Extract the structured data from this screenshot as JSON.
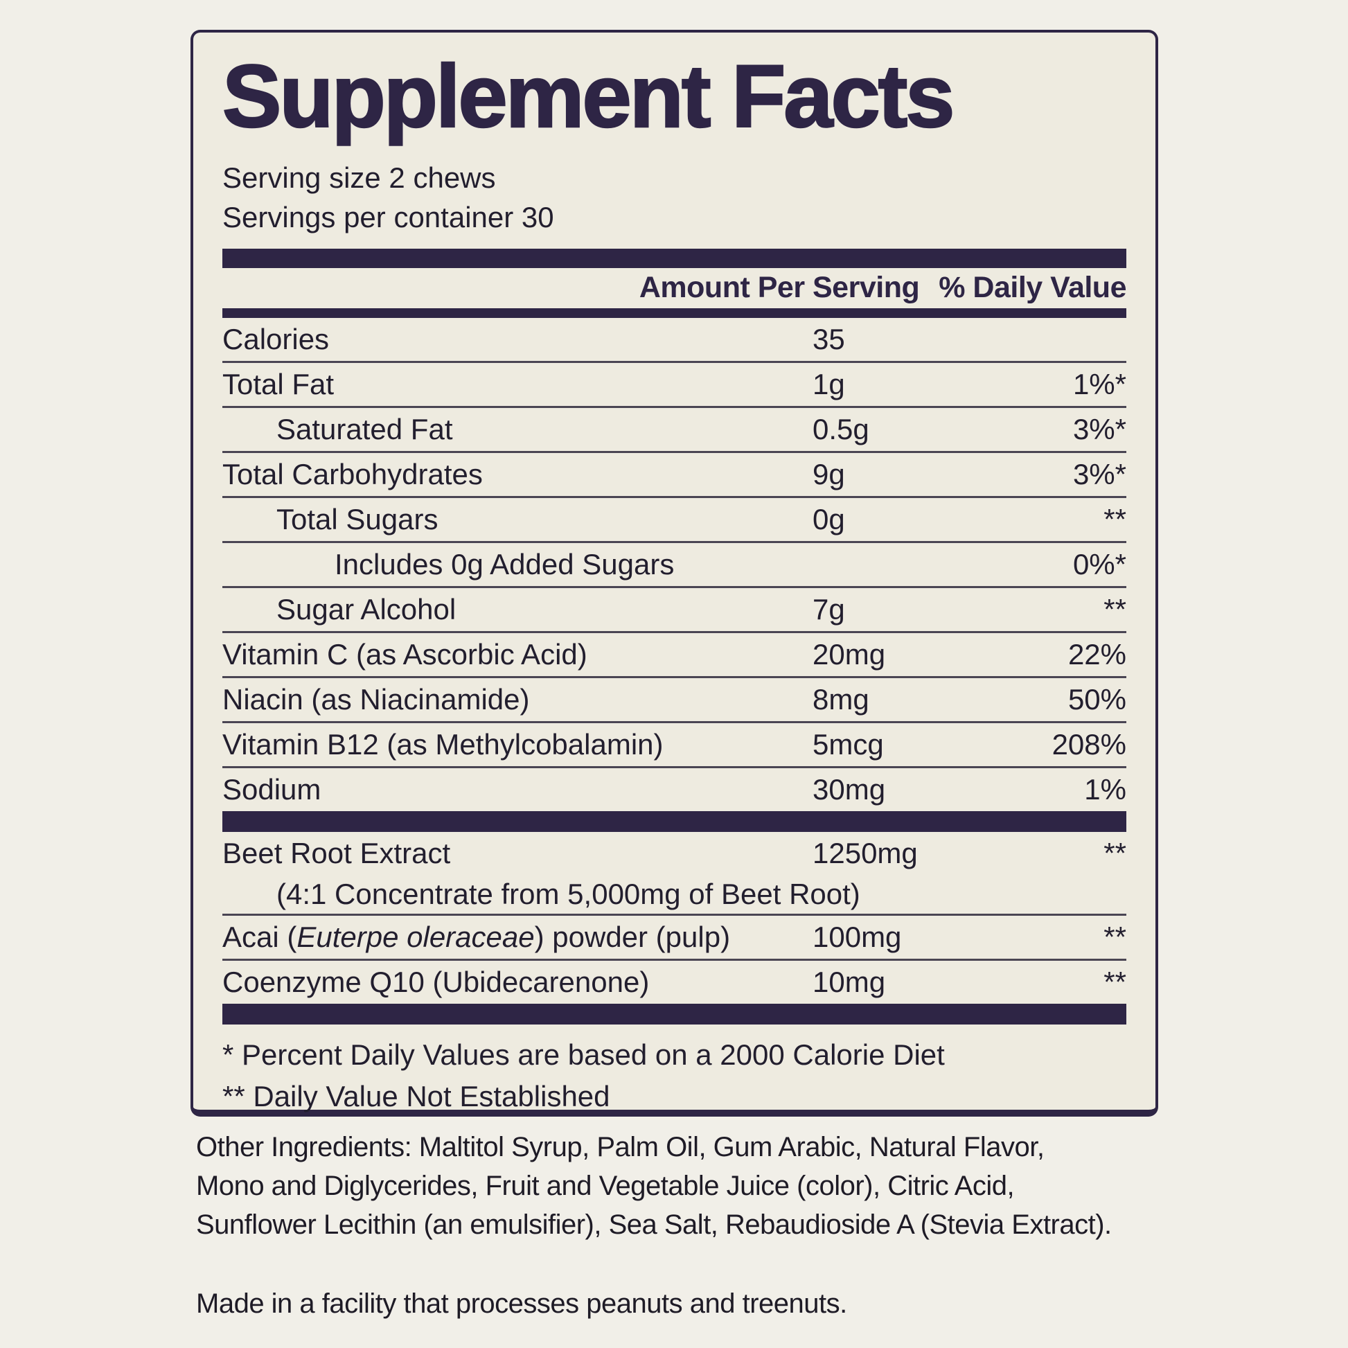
{
  "panel": {
    "title": "Supplement Facts",
    "serving_size": "Serving size 2 chews",
    "servings_per_container": "Servings per container 30",
    "columns": {
      "amount": "Amount Per Serving",
      "daily_value": "% Daily Value"
    },
    "nutrients": [
      {
        "name": "Calories",
        "amount": "35",
        "daily_value": "",
        "indent": 0
      },
      {
        "name": "Total Fat",
        "amount": "1g",
        "daily_value": "1%*",
        "indent": 0
      },
      {
        "name": "Saturated Fat",
        "amount": "0.5g",
        "daily_value": "3%*",
        "indent": 1
      },
      {
        "name": "Total Carbohydrates",
        "amount": "9g",
        "daily_value": "3%*",
        "indent": 0
      },
      {
        "name": "Total Sugars",
        "amount": "0g",
        "daily_value": "**",
        "indent": 1
      },
      {
        "name": "Includes 0g Added Sugars",
        "amount": "",
        "daily_value": "0%*",
        "indent": 2
      },
      {
        "name": "Sugar Alcohol",
        "amount": "7g",
        "daily_value": "**",
        "indent": 1
      },
      {
        "name": "Vitamin C (as Ascorbic Acid)",
        "amount": "20mg",
        "daily_value": "22%",
        "indent": 0
      },
      {
        "name": "Niacin (as Niacinamide)",
        "amount": "8mg",
        "daily_value": "50%",
        "indent": 0
      },
      {
        "name": "Vitamin B12 (as Methylcobalamin)",
        "amount": "5mcg",
        "daily_value": "208%",
        "indent": 0
      },
      {
        "name": "Sodium",
        "amount": "30mg",
        "daily_value": "1%",
        "indent": 0
      }
    ],
    "botanicals": [
      {
        "name": "Beet Root Extract",
        "amount": "1250mg",
        "daily_value": "**",
        "indent": 0,
        "subtext": "(4:1 Concentrate from 5,000mg of Beet Root)"
      },
      {
        "name_parts": [
          {
            "text": "Acai ("
          },
          {
            "text": "Euterpe oleraceae",
            "italic": true
          },
          {
            "text": ") powder (pulp)"
          }
        ],
        "amount": "100mg",
        "daily_value": "**",
        "indent": 0
      },
      {
        "name": "Coenzyme Q10 (Ubidecarenone)",
        "amount": "10mg",
        "daily_value": "**",
        "indent": 0
      }
    ],
    "footnotes": [
      "* Percent Daily Values are based on a 2000 Calorie Diet",
      "** Daily Value Not Established"
    ]
  },
  "other_ingredients": "Other Ingredients: Maltitol Syrup, Palm Oil, Gum Arabic, Natural Flavor,\nMono and Diglycerides, Fruit and Vegetable Juice (color), Citric Acid,\nSunflower Lecithin (an emulsifier), Sea Salt, Rebaudioside A (Stevia Extract).",
  "allergen_notice": "Made in a facility that processes peanuts and treenuts.",
  "colors": {
    "ink": "#2e2545",
    "text": "#221e2e",
    "panel_bg": "#eeebe0",
    "page_bg": "#f1efe8",
    "separator": "#4a4553"
  }
}
